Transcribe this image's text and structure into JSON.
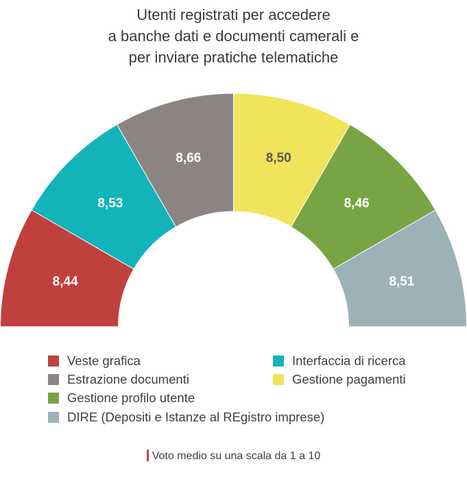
{
  "chart_data": {
    "type": "pie",
    "subtype": "semi-donut",
    "title_lines": [
      "Utenti registrati per accedere",
      "a banche dati e documenti camerali e",
      "per inviare pratiche telematiche"
    ],
    "series": [
      {
        "name": "Veste grafica",
        "value": "8,44",
        "color": "#c0403d"
      },
      {
        "name": "Interfaccia di ricerca",
        "value": "8,53",
        "color": "#13b3ba"
      },
      {
        "name": "Estrazione documenti",
        "value": "8,66",
        "color": "#8c8482"
      },
      {
        "name": "Gestione pagamenti",
        "value": "8,50",
        "color": "#f1e35a"
      },
      {
        "name": "Gestione profilo utente",
        "value": "8,46",
        "color": "#78a443"
      },
      {
        "name": "DIRE (Depositi e Istanze al REgistro imprese)",
        "value": "8,51",
        "color": "#9cb2b8"
      }
    ],
    "label_colors": [
      "#ffffff",
      "#ffffff",
      "#ffffff",
      "#5a5a5a",
      "#ffffff",
      "#ffffff"
    ],
    "legend_position": "bottom",
    "footnote": "Voto medio su una scala da 1 a 10",
    "footnote_marker_color": "#c0403d"
  }
}
